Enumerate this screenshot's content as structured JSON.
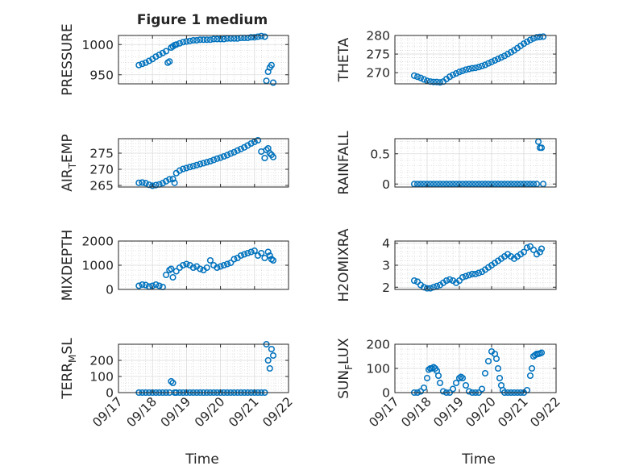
{
  "figure": {
    "title": "Figure 1 medium",
    "xlabel": "Time",
    "marker_color": "#0072BD"
  },
  "chart_data": [
    {
      "type": "scatter",
      "ylabel_parts": [
        {
          "t": "PRESSURE"
        }
      ],
      "ylim": [
        935,
        1015
      ],
      "yticks": [
        950,
        1000
      ],
      "xlim": [
        0,
        5
      ],
      "xticks": [
        0,
        1,
        2,
        3,
        4,
        5
      ],
      "xticklabels": [
        "09/17",
        "09/18",
        "09/19",
        "09/20",
        "09/21",
        "09/22"
      ],
      "series": [
        {
          "x": [
            0.6,
            0.7,
            0.8,
            0.9,
            1.0,
            1.1,
            1.2,
            1.3,
            1.4,
            1.45,
            1.5,
            1.55,
            1.6,
            1.65,
            1.7,
            1.8,
            1.9,
            2.0,
            2.1,
            2.2,
            2.3,
            2.4,
            2.5,
            2.6,
            2.7,
            2.8,
            2.9,
            3.0,
            3.1,
            3.2,
            3.3,
            3.4,
            3.5,
            3.6,
            3.7,
            3.8,
            3.9,
            4.0,
            4.1,
            4.2,
            4.3,
            4.35,
            4.4,
            4.45,
            4.5,
            4.55
          ],
          "y": [
            966,
            968,
            970,
            973,
            976,
            980,
            983,
            986,
            989,
            970,
            972,
            995,
            997,
            999,
            1000,
            1002,
            1004,
            1005,
            1006,
            1007,
            1007,
            1008,
            1008,
            1008,
            1008,
            1009,
            1009,
            1009,
            1009,
            1010,
            1010,
            1010,
            1010,
            1011,
            1011,
            1011,
            1012,
            1012,
            1013,
            1014,
            1013,
            940,
            955,
            962,
            966,
            937
          ]
        }
      ]
    },
    {
      "type": "scatter",
      "ylabel_parts": [
        {
          "t": "THETA"
        }
      ],
      "ylim": [
        267,
        280
      ],
      "yticks": [
        270,
        275,
        280
      ],
      "xlim": [
        0,
        5
      ],
      "xticks": [
        0,
        1,
        2,
        3,
        4,
        5
      ],
      "xticklabels": [
        "09/17",
        "09/18",
        "09/19",
        "09/20",
        "09/21",
        "09/22"
      ],
      "series": [
        {
          "x": [
            0.6,
            0.7,
            0.8,
            0.9,
            1.0,
            1.1,
            1.2,
            1.3,
            1.4,
            1.5,
            1.6,
            1.7,
            1.8,
            1.9,
            2.0,
            2.1,
            2.2,
            2.3,
            2.4,
            2.5,
            2.6,
            2.7,
            2.8,
            2.9,
            3.0,
            3.1,
            3.2,
            3.3,
            3.4,
            3.5,
            3.6,
            3.7,
            3.8,
            3.9,
            4.0,
            4.1,
            4.2,
            4.3,
            4.4,
            4.5,
            4.6
          ],
          "y": [
            269.2,
            268.9,
            268.6,
            268.2,
            267.8,
            267.6,
            267.5,
            267.5,
            267.4,
            267.6,
            268.3,
            268.9,
            269.4,
            269.8,
            270.2,
            270.5,
            270.8,
            271.0,
            271.2,
            271.3,
            271.5,
            271.8,
            272.1,
            272.5,
            272.9,
            273.3,
            273.7,
            274.1,
            274.5,
            275.0,
            275.5,
            276.0,
            276.6,
            277.2,
            277.8,
            278.3,
            278.8,
            279.2,
            279.5,
            279.6,
            279.7
          ]
        }
      ]
    },
    {
      "type": "scatter",
      "ylabel_parts": [
        {
          "t": "AIR"
        },
        {
          "t": "T",
          "sub": true
        },
        {
          "t": "EMP"
        }
      ],
      "ylim": [
        264.5,
        279.5
      ],
      "yticks": [
        265,
        270,
        275
      ],
      "xlim": [
        0,
        5
      ],
      "xticks": [
        0,
        1,
        2,
        3,
        4,
        5
      ],
      "xticklabels": [
        "09/17",
        "09/18",
        "09/19",
        "09/20",
        "09/21",
        "09/22"
      ],
      "series": [
        {
          "x": [
            0.6,
            0.7,
            0.8,
            0.9,
            1.0,
            1.1,
            1.2,
            1.3,
            1.4,
            1.5,
            1.6,
            1.65,
            1.7,
            1.8,
            1.9,
            2.0,
            2.1,
            2.2,
            2.3,
            2.4,
            2.5,
            2.6,
            2.7,
            2.8,
            2.9,
            3.0,
            3.1,
            3.2,
            3.3,
            3.4,
            3.5,
            3.6,
            3.7,
            3.8,
            3.9,
            4.0,
            4.1,
            4.2,
            4.3,
            4.35,
            4.4,
            4.45,
            4.5,
            4.55
          ],
          "y": [
            265.8,
            265.9,
            265.7,
            265.2,
            264.9,
            265.1,
            265.3,
            265.7,
            266.3,
            266.9,
            267.0,
            265.8,
            268.8,
            269.6,
            270.1,
            270.4,
            270.7,
            271.0,
            271.3,
            271.6,
            271.9,
            272.2,
            272.5,
            272.9,
            273.3,
            273.6,
            274.0,
            274.4,
            274.9,
            275.3,
            275.8,
            276.3,
            276.8,
            277.4,
            278.0,
            278.5,
            279.0,
            275.5,
            273.5,
            276.0,
            276.5,
            275.0,
            274.5,
            273.8
          ]
        }
      ]
    },
    {
      "type": "scatter",
      "ylabel_parts": [
        {
          "t": "RAINFALL"
        }
      ],
      "ylim": [
        -0.05,
        0.75
      ],
      "yticks": [
        0,
        0.5
      ],
      "yticklabels": [
        "0",
        "0.5"
      ],
      "xlim": [
        0,
        5
      ],
      "xticks": [
        0,
        1,
        2,
        3,
        4,
        5
      ],
      "xticklabels": [
        "09/17",
        "09/18",
        "09/19",
        "09/20",
        "09/21",
        "09/22"
      ],
      "series": [
        {
          "x": [
            0.6,
            0.7,
            0.8,
            0.9,
            1.0,
            1.1,
            1.2,
            1.3,
            1.4,
            1.5,
            1.6,
            1.7,
            1.8,
            1.9,
            2.0,
            2.1,
            2.2,
            2.3,
            2.4,
            2.5,
            2.6,
            2.7,
            2.8,
            2.9,
            3.0,
            3.1,
            3.2,
            3.3,
            3.4,
            3.5,
            3.6,
            3.7,
            3.8,
            3.9,
            4.0,
            4.1,
            4.2,
            4.3,
            4.4,
            4.45,
            4.5,
            4.55,
            4.6
          ],
          "y": [
            0,
            0,
            0,
            0,
            0,
            0,
            0,
            0,
            0,
            0,
            0,
            0,
            0,
            0,
            0,
            0,
            0,
            0,
            0,
            0,
            0,
            0,
            0,
            0,
            0,
            0,
            0,
            0,
            0,
            0,
            0,
            0,
            0,
            0,
            0,
            0,
            0,
            0,
            0,
            0.7,
            0.6,
            0.6,
            0
          ]
        }
      ]
    },
    {
      "type": "scatter",
      "ylabel_parts": [
        {
          "t": "MIXDEPTH"
        }
      ],
      "ylim": [
        0,
        2000
      ],
      "yticks": [
        0,
        1000,
        2000
      ],
      "xlim": [
        0,
        5
      ],
      "xticks": [
        0,
        1,
        2,
        3,
        4,
        5
      ],
      "xticklabels": [
        "09/17",
        "09/18",
        "09/19",
        "09/20",
        "09/21",
        "09/22"
      ],
      "series": [
        {
          "x": [
            0.6,
            0.7,
            0.8,
            0.9,
            1.0,
            1.1,
            1.2,
            1.3,
            1.4,
            1.5,
            1.55,
            1.6,
            1.7,
            1.8,
            1.9,
            2.0,
            2.1,
            2.2,
            2.3,
            2.4,
            2.5,
            2.6,
            2.7,
            2.8,
            2.9,
            3.0,
            3.1,
            3.2,
            3.3,
            3.4,
            3.5,
            3.6,
            3.7,
            3.8,
            3.9,
            4.0,
            4.1,
            4.2,
            4.3,
            4.4,
            4.45,
            4.5,
            4.55
          ],
          "y": [
            150,
            200,
            180,
            120,
            150,
            200,
            150,
            100,
            600,
            800,
            850,
            500,
            750,
            900,
            1000,
            1050,
            1000,
            900,
            950,
            850,
            800,
            900,
            1200,
            1000,
            900,
            950,
            1000,
            1050,
            1100,
            1250,
            1300,
            1400,
            1450,
            1500,
            1550,
            1600,
            1400,
            1500,
            1300,
            1550,
            1400,
            1250,
            1200
          ]
        }
      ]
    },
    {
      "type": "scatter",
      "ylabel_parts": [
        {
          "t": "H2OMIXRA"
        }
      ],
      "ylim": [
        1.9,
        4.1
      ],
      "yticks": [
        2,
        3,
        4
      ],
      "xlim": [
        0,
        5
      ],
      "xticks": [
        0,
        1,
        2,
        3,
        4,
        5
      ],
      "xticklabels": [
        "09/17",
        "09/18",
        "09/19",
        "09/20",
        "09/21",
        "09/22"
      ],
      "series": [
        {
          "x": [
            0.6,
            0.7,
            0.8,
            0.9,
            1.0,
            1.1,
            1.2,
            1.3,
            1.4,
            1.5,
            1.6,
            1.7,
            1.8,
            1.9,
            2.0,
            2.1,
            2.2,
            2.3,
            2.4,
            2.5,
            2.6,
            2.7,
            2.8,
            2.9,
            3.0,
            3.1,
            3.2,
            3.3,
            3.4,
            3.5,
            3.6,
            3.7,
            3.8,
            3.9,
            4.0,
            4.1,
            4.2,
            4.3,
            4.4,
            4.5,
            4.55
          ],
          "y": [
            2.3,
            2.25,
            2.1,
            2.0,
            1.95,
            1.95,
            2.0,
            2.05,
            2.1,
            2.2,
            2.3,
            2.35,
            2.3,
            2.2,
            2.3,
            2.45,
            2.5,
            2.55,
            2.6,
            2.6,
            2.65,
            2.7,
            2.8,
            2.9,
            3.0,
            3.1,
            3.2,
            3.3,
            3.4,
            3.5,
            3.4,
            3.3,
            3.4,
            3.5,
            3.6,
            3.8,
            3.85,
            3.7,
            3.5,
            3.6,
            3.75
          ]
        }
      ]
    },
    {
      "type": "scatter",
      "ylabel_parts": [
        {
          "t": "TERR"
        },
        {
          "t": "M",
          "sub": true
        },
        {
          "t": "SL"
        }
      ],
      "ylim": [
        0,
        300
      ],
      "yticks": [
        0,
        100,
        200
      ],
      "xlim": [
        0,
        5
      ],
      "xticks": [
        0,
        1,
        2,
        3,
        4,
        5
      ],
      "xticklabels": [
        "09/17",
        "09/18",
        "09/19",
        "09/20",
        "09/21",
        "09/22"
      ],
      "series": [
        {
          "x": [
            0.6,
            0.7,
            0.8,
            0.9,
            1.0,
            1.1,
            1.2,
            1.3,
            1.4,
            1.5,
            1.55,
            1.6,
            1.65,
            1.7,
            1.8,
            1.9,
            2.0,
            2.1,
            2.2,
            2.3,
            2.4,
            2.5,
            2.6,
            2.7,
            2.8,
            2.9,
            3.0,
            3.1,
            3.2,
            3.3,
            3.4,
            3.5,
            3.6,
            3.7,
            3.8,
            3.9,
            4.0,
            4.1,
            4.2,
            4.3,
            4.35,
            4.4,
            4.45,
            4.5,
            4.55
          ],
          "y": [
            0,
            0,
            0,
            0,
            0,
            0,
            0,
            0,
            0,
            0,
            70,
            60,
            0,
            0,
            0,
            0,
            0,
            0,
            0,
            0,
            0,
            0,
            0,
            0,
            0,
            0,
            0,
            0,
            0,
            0,
            0,
            0,
            0,
            0,
            0,
            0,
            0,
            0,
            0,
            0,
            300,
            200,
            150,
            270,
            230
          ]
        }
      ]
    },
    {
      "type": "scatter",
      "ylabel_parts": [
        {
          "t": "SUN"
        },
        {
          "t": "F",
          "sub": true
        },
        {
          "t": "LUX"
        }
      ],
      "ylim": [
        0,
        200
      ],
      "yticks": [
        0,
        100,
        200
      ],
      "xlim": [
        0,
        5
      ],
      "xticks": [
        0,
        1,
        2,
        3,
        4,
        5
      ],
      "xticklabels": [
        "09/17",
        "09/18",
        "09/19",
        "09/20",
        "09/21",
        "09/22"
      ],
      "series": [
        {
          "x": [
            0.6,
            0.7,
            0.8,
            0.9,
            1.0,
            1.05,
            1.1,
            1.15,
            1.2,
            1.25,
            1.3,
            1.35,
            1.4,
            1.5,
            1.6,
            1.7,
            1.8,
            1.9,
            2.0,
            2.05,
            2.1,
            2.2,
            2.3,
            2.4,
            2.5,
            2.6,
            2.7,
            2.8,
            2.9,
            3.0,
            3.1,
            3.15,
            3.2,
            3.25,
            3.3,
            3.35,
            3.4,
            3.5,
            3.6,
            3.7,
            3.8,
            3.9,
            4.0,
            4.1,
            4.2,
            4.25,
            4.3,
            4.35,
            4.4,
            4.45,
            4.5,
            4.55
          ],
          "y": [
            0,
            0,
            5,
            20,
            60,
            95,
            100,
            100,
            105,
            100,
            90,
            70,
            40,
            5,
            0,
            0,
            15,
            40,
            60,
            65,
            60,
            30,
            5,
            0,
            0,
            0,
            15,
            80,
            130,
            170,
            160,
            140,
            100,
            60,
            30,
            10,
            0,
            0,
            0,
            0,
            0,
            0,
            0,
            10,
            70,
            100,
            150,
            155,
            160,
            160,
            162,
            165
          ]
        }
      ]
    }
  ]
}
